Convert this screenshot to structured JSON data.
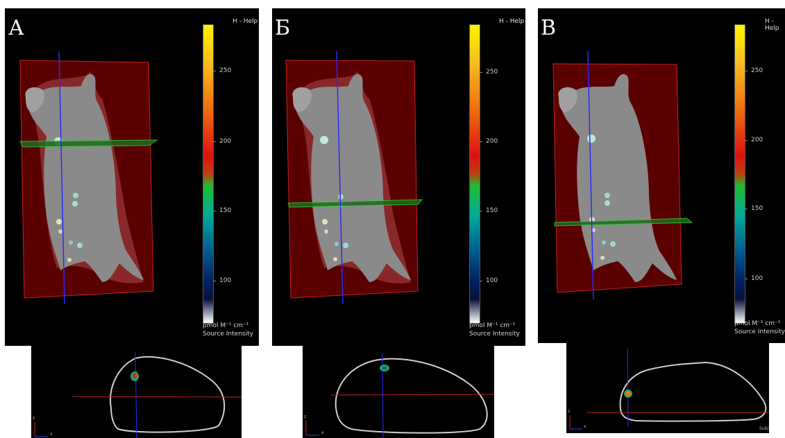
{
  "panels": [
    {
      "letter": "А",
      "help": "H - Help",
      "scale_ticks": [
        "250",
        "200",
        "150",
        "100"
      ],
      "unit": "pmol M⁻¹ cm⁻¹",
      "legend_title": "Source Intensity",
      "slice_level": "upper-thorax"
    },
    {
      "letter": "Б",
      "help": "H - Help",
      "scale_ticks": [
        "250",
        "200",
        "150",
        "100"
      ],
      "unit": "pmol M⁻¹ cm⁻¹",
      "legend_title": "Source Intensity",
      "slice_level": "mid-abdomen"
    },
    {
      "letter": "В",
      "help": "H - Help",
      "scale_ticks": [
        "250",
        "200",
        "150",
        "100"
      ],
      "unit": "pmol M⁻¹ cm⁻¹",
      "legend_title": "Source Intensity",
      "slice_level": "lower-abdomen"
    }
  ],
  "cross_sections": [
    {
      "axis_z": "z",
      "axis_x": "x",
      "corner_text": ""
    },
    {
      "axis_z": "z",
      "axis_x": "x",
      "corner_text": ""
    },
    {
      "axis_z": "z",
      "axis_x": "x",
      "corner_text": "Subj"
    }
  ],
  "colors": {
    "background": "#000000",
    "mouse": "#8a8a8a",
    "bounding_box": "#cc2020",
    "slice_plane": "#30d030",
    "vertical_axis": "#2a2aff",
    "section_outline": "#cfcfcf",
    "section_horizontal": "#c02020"
  }
}
